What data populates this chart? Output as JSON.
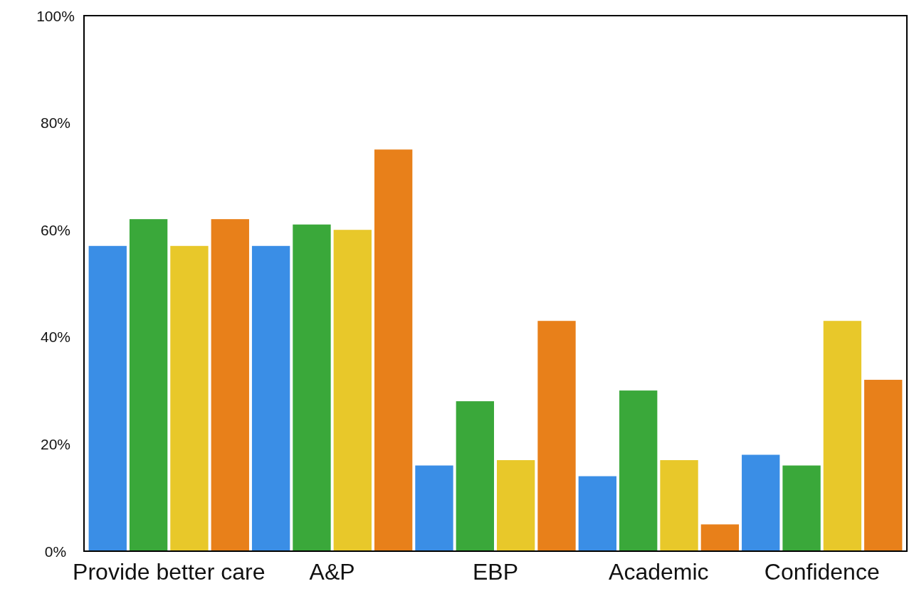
{
  "chart_data": {
    "type": "bar",
    "categories": [
      "Provide better care",
      "A&P",
      "EBP",
      "Academic",
      "Confidence"
    ],
    "series": [
      {
        "color": "#3a8ee6",
        "values": [
          57,
          57,
          16,
          14,
          18
        ]
      },
      {
        "color": "#3aa83a",
        "values": [
          62,
          61,
          28,
          30,
          16
        ]
      },
      {
        "color": "#e8c82a",
        "values": [
          57,
          60,
          17,
          17,
          43
        ]
      },
      {
        "color": "#e8801a",
        "values": [
          62,
          75,
          43,
          5,
          32
        ]
      }
    ],
    "ylim": [
      0,
      100
    ],
    "yticks": [
      {
        "value": 0,
        "label": "0%"
      },
      {
        "value": 20,
        "label": "20%"
      },
      {
        "value": 40,
        "label": "40%"
      },
      {
        "value": 60,
        "label": "60%"
      },
      {
        "value": 80,
        "label": "80%"
      },
      {
        "value": 100,
        "label": "100%"
      }
    ],
    "grid": false
  }
}
